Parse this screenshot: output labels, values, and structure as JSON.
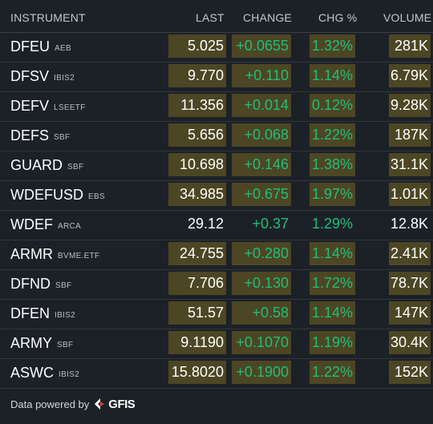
{
  "header": {
    "instrument": "INSTRUMENT",
    "last": "LAST",
    "change": "CHANGE",
    "chg_pct": "CHG %",
    "volume": "VOLUME"
  },
  "rows": [
    {
      "symbol": "DFEU",
      "exchange": "AEB",
      "last": "5.025",
      "change": "+0.0655",
      "pct": "1.32%",
      "volume": "281K",
      "highlighted": true
    },
    {
      "symbol": "DFSV",
      "exchange": "IBIS2",
      "last": "9.770",
      "change": "+0.110",
      "pct": "1.14%",
      "volume": "6.79K",
      "highlighted": true
    },
    {
      "symbol": "DEFV",
      "exchange": "LSEETF",
      "last": "11.356",
      "change": "+0.014",
      "pct": "0.12%",
      "volume": "9.28K",
      "highlighted": true
    },
    {
      "symbol": "DEFS",
      "exchange": "SBF",
      "last": "5.656",
      "change": "+0.068",
      "pct": "1.22%",
      "volume": "187K",
      "highlighted": true
    },
    {
      "symbol": "GUARD",
      "exchange": "SBF",
      "last": "10.698",
      "change": "+0.146",
      "pct": "1.38%",
      "volume": "31.1K",
      "highlighted": true
    },
    {
      "symbol": "WDEFUSD",
      "exchange": "EBS",
      "last": "34.985",
      "change": "+0.675",
      "pct": "1.97%",
      "volume": "1.01K",
      "highlighted": true
    },
    {
      "symbol": "WDEF",
      "exchange": "ARCA",
      "last": "29.12",
      "change": "+0.37",
      "pct": "1.29%",
      "volume": "12.8K",
      "highlighted": false
    },
    {
      "symbol": "ARMR",
      "exchange": "BVME.ETF",
      "last": "24.755",
      "change": "+0.280",
      "pct": "1.14%",
      "volume": "2.41K",
      "highlighted": true
    },
    {
      "symbol": "DFND",
      "exchange": "SBF",
      "last": "7.706",
      "change": "+0.130",
      "pct": "1.72%",
      "volume": "78.7K",
      "highlighted": true
    },
    {
      "symbol": "DFEN",
      "exchange": "IBIS2",
      "last": "51.57",
      "change": "+0.58",
      "pct": "1.14%",
      "volume": "147K",
      "highlighted": true
    },
    {
      "symbol": "ARMY",
      "exchange": "SBF",
      "last": "9.1190",
      "change": "+0.1070",
      "pct": "1.19%",
      "volume": "30.4K",
      "highlighted": true
    },
    {
      "symbol": "ASWC",
      "exchange": "IBIS2",
      "last": "15.8020",
      "change": "+0.1900",
      "pct": "1.22%",
      "volume": "152K",
      "highlighted": true
    }
  ],
  "footer": {
    "text": "Data powered by",
    "brand": "GFIS"
  },
  "colors": {
    "background": "#1c2128",
    "highlight": "#4c4624",
    "positive": "#1fbf7a"
  }
}
